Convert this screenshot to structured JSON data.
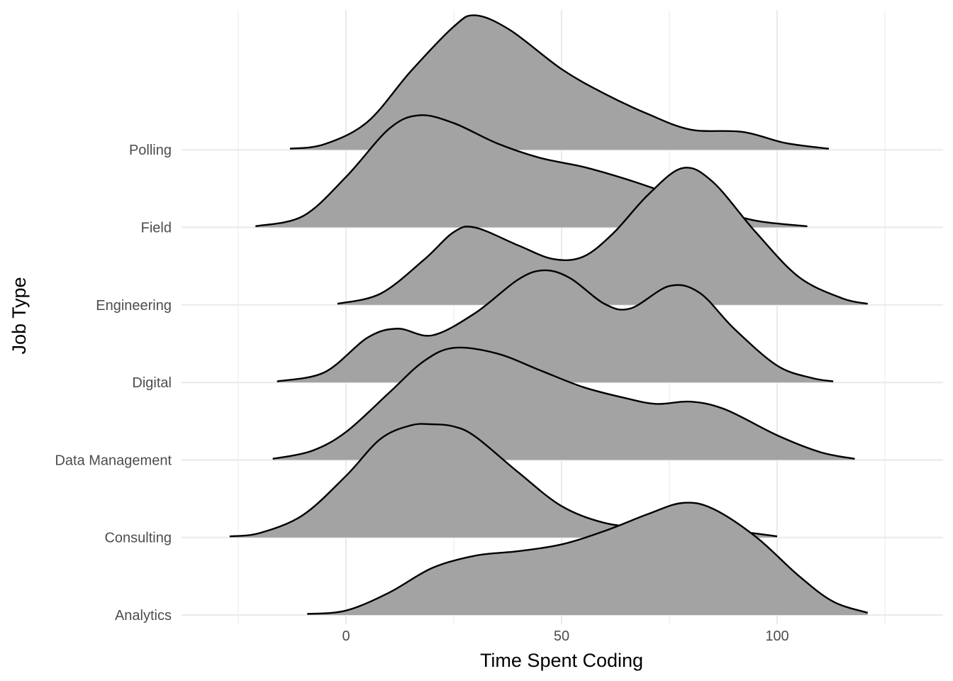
{
  "chart_data": {
    "type": "ridgeline",
    "xlabel": "Time Spent Coding",
    "ylabel": "Job Type",
    "xlim": [
      -25,
      138
    ],
    "x_ticks": [
      0,
      50,
      100
    ],
    "grid": true,
    "colors": {
      "fill": "#a3a3a3",
      "stroke": "#000000",
      "grid": "#ebebeb"
    },
    "categories": [
      "Analytics",
      "Consulting",
      "Data Management",
      "Digital",
      "Engineering",
      "Field",
      "Polling"
    ],
    "series": [
      {
        "name": "Analytics",
        "points": [
          [
            -9,
            0.01
          ],
          [
            0,
            0.04
          ],
          [
            10,
            0.2
          ],
          [
            20,
            0.42
          ],
          [
            30,
            0.53
          ],
          [
            40,
            0.57
          ],
          [
            50,
            0.63
          ],
          [
            60,
            0.75
          ],
          [
            70,
            0.9
          ],
          [
            78,
            1.0
          ],
          [
            85,
            0.95
          ],
          [
            95,
            0.7
          ],
          [
            105,
            0.35
          ],
          [
            113,
            0.12
          ],
          [
            121,
            0.02
          ]
        ]
      },
      {
        "name": "Consulting",
        "points": [
          [
            -27,
            0.01
          ],
          [
            -20,
            0.04
          ],
          [
            -10,
            0.2
          ],
          [
            0,
            0.55
          ],
          [
            8,
            0.88
          ],
          [
            15,
            1.0
          ],
          [
            20,
            1.01
          ],
          [
            25,
            0.99
          ],
          [
            30,
            0.9
          ],
          [
            40,
            0.58
          ],
          [
            50,
            0.28
          ],
          [
            60,
            0.13
          ],
          [
            70,
            0.09
          ],
          [
            80,
            0.1
          ],
          [
            90,
            0.06
          ],
          [
            100,
            0.01
          ]
        ]
      },
      {
        "name": "Data Management",
        "points": [
          [
            -17,
            0.01
          ],
          [
            -8,
            0.08
          ],
          [
            0,
            0.25
          ],
          [
            10,
            0.6
          ],
          [
            18,
            0.88
          ],
          [
            25,
            1.0
          ],
          [
            35,
            0.95
          ],
          [
            45,
            0.8
          ],
          [
            55,
            0.65
          ],
          [
            65,
            0.55
          ],
          [
            72,
            0.5
          ],
          [
            80,
            0.52
          ],
          [
            88,
            0.45
          ],
          [
            100,
            0.22
          ],
          [
            110,
            0.07
          ],
          [
            118,
            0.01
          ]
        ]
      },
      {
        "name": "Digital",
        "points": [
          [
            -16,
            0.01
          ],
          [
            -5,
            0.09
          ],
          [
            5,
            0.4
          ],
          [
            12,
            0.48
          ],
          [
            20,
            0.42
          ],
          [
            30,
            0.62
          ],
          [
            40,
            0.92
          ],
          [
            46,
            1.0
          ],
          [
            52,
            0.93
          ],
          [
            60,
            0.7
          ],
          [
            66,
            0.66
          ],
          [
            75,
            0.86
          ],
          [
            82,
            0.8
          ],
          [
            90,
            0.48
          ],
          [
            100,
            0.15
          ],
          [
            108,
            0.04
          ],
          [
            113,
            0.01
          ]
        ]
      },
      {
        "name": "Engineering",
        "points": [
          [
            -2,
            0.01
          ],
          [
            8,
            0.1
          ],
          [
            18,
            0.4
          ],
          [
            25,
            0.65
          ],
          [
            30,
            0.69
          ],
          [
            40,
            0.53
          ],
          [
            48,
            0.41
          ],
          [
            55,
            0.43
          ],
          [
            62,
            0.64
          ],
          [
            70,
            0.98
          ],
          [
            78,
            1.22
          ],
          [
            85,
            1.1
          ],
          [
            95,
            0.65
          ],
          [
            105,
            0.25
          ],
          [
            115,
            0.06
          ],
          [
            121,
            0.01
          ]
        ]
      },
      {
        "name": "Field",
        "points": [
          [
            -21,
            0.01
          ],
          [
            -10,
            0.1
          ],
          [
            0,
            0.45
          ],
          [
            10,
            0.88
          ],
          [
            17,
            1.0
          ],
          [
            25,
            0.93
          ],
          [
            35,
            0.75
          ],
          [
            45,
            0.62
          ],
          [
            55,
            0.54
          ],
          [
            65,
            0.43
          ],
          [
            75,
            0.3
          ],
          [
            85,
            0.17
          ],
          [
            95,
            0.06
          ],
          [
            107,
            0.01
          ]
        ]
      },
      {
        "name": "Polling",
        "points": [
          [
            -13,
            0.01
          ],
          [
            -5,
            0.05
          ],
          [
            5,
            0.25
          ],
          [
            15,
            0.7
          ],
          [
            25,
            1.1
          ],
          [
            30,
            1.2
          ],
          [
            38,
            1.07
          ],
          [
            50,
            0.72
          ],
          [
            60,
            0.5
          ],
          [
            70,
            0.32
          ],
          [
            80,
            0.18
          ],
          [
            92,
            0.16
          ],
          [
            102,
            0.06
          ],
          [
            112,
            0.01
          ]
        ]
      }
    ]
  }
}
